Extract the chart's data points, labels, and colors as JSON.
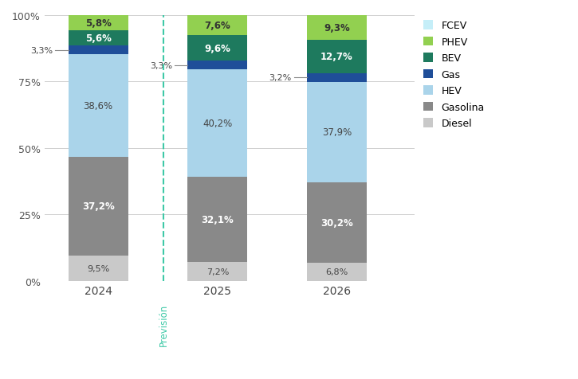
{
  "years": [
    "2024",
    "2025",
    "2026"
  ],
  "categories": [
    "Diesel",
    "Gasolina",
    "HEV",
    "Gas",
    "BEV",
    "PHEV",
    "FCEV"
  ],
  "values": {
    "Diesel": [
      9.5,
      7.2,
      6.8
    ],
    "Gasolina": [
      37.2,
      32.1,
      30.2
    ],
    "HEV": [
      38.6,
      40.2,
      37.9
    ],
    "Gas": [
      3.3,
      3.3,
      3.2
    ],
    "BEV": [
      5.6,
      9.6,
      12.7
    ],
    "PHEV": [
      5.8,
      7.6,
      9.3
    ],
    "FCEV": [
      0.0,
      0.0,
      0.0
    ]
  },
  "colors": {
    "Diesel": "#c9c9c9",
    "Gasolina": "#898989",
    "HEV": "#aad4ea",
    "Gas": "#1f4e99",
    "BEV": "#1e7a5e",
    "PHEV": "#92d050",
    "FCEV": "#c5eef8"
  },
  "bar_width": 0.5,
  "bar_positions": [
    1,
    2,
    3
  ],
  "dashed_line_x": 1.55,
  "prevision_label": "Previsión",
  "ylim": [
    0,
    100
  ],
  "yticks": [
    0,
    25,
    50,
    75,
    100
  ],
  "ytick_labels": [
    "0%",
    "25%",
    "50%",
    "75%",
    "100%"
  ],
  "background_color": "#ffffff",
  "grid_color": "#d0d0d0",
  "legend_order": [
    "FCEV",
    "PHEV",
    "BEV",
    "Gas",
    "HEV",
    "Gasolina",
    "Diesel"
  ],
  "label_colors": {
    "Diesel": "#444444",
    "Gasolina": "#ffffff",
    "HEV": "#444444",
    "Gas": "#ffffff",
    "BEV": "#ffffff",
    "PHEV": "#333333",
    "FCEV": "#444444"
  },
  "gas_outside_labels": [
    3.3,
    3.3,
    3.2
  ]
}
